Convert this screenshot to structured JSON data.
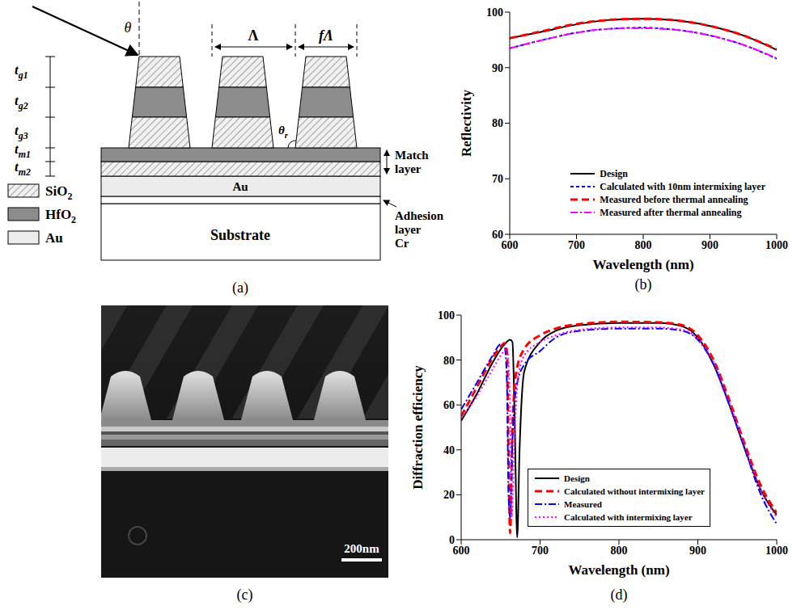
{
  "diagram": {
    "label": "(a)",
    "angle_incidence": "θ",
    "angle_sidewall": {
      "text": "θ",
      "sub": "r"
    },
    "period": "Λ",
    "width": "fΛ",
    "thickness_labels": [
      {
        "text": "t",
        "sub": "g1"
      },
      {
        "text": "t",
        "sub": "g2"
      },
      {
        "text": "t",
        "sub": "g3"
      },
      {
        "text": "t",
        "sub": "m1"
      },
      {
        "text": "t",
        "sub": "m2"
      }
    ],
    "match_layer": "Match layer",
    "metal_layer": "Au",
    "substrate": "Substrate",
    "adhesion_layer": [
      "Adhesion",
      "layer",
      "Cr"
    ],
    "materials": [
      {
        "text": "SiO",
        "sub": "2"
      },
      {
        "text": "HfO",
        "sub": "2"
      },
      {
        "text": "Au"
      }
    ]
  },
  "chart_data": [
    {
      "type": "line",
      "label": "(b)",
      "xlabel": "Wavelength (nm)",
      "ylabel": "Reflectivity",
      "xlim": [
        600,
        1000
      ],
      "xticks": [
        600,
        700,
        800,
        900,
        1000
      ],
      "ylim": [
        60,
        100
      ],
      "yticks": [
        60,
        70,
        80,
        90,
        100
      ],
      "legend": "lower right",
      "series": [
        {
          "name": "Design",
          "color": "#000000",
          "line_style": "solid",
          "x": [
            600,
            650,
            700,
            750,
            800,
            850,
            900,
            950,
            1000
          ],
          "values": [
            95.3,
            96.5,
            97.8,
            98.6,
            98.8,
            98.5,
            97.5,
            95.8,
            93.2
          ]
        },
        {
          "name": "Calculated with 10nm intermixing layer",
          "color": "#0000ff",
          "line_style": "short_dash",
          "x": [
            600,
            650,
            700,
            750,
            800,
            850,
            900,
            950,
            1000
          ],
          "values": [
            93.5,
            95,
            96.3,
            97,
            97.2,
            96.8,
            95.8,
            94.1,
            91.6
          ]
        },
        {
          "name": "Measured before thermal annealing",
          "color": "#ff0000",
          "line_style": "dashed",
          "x": [
            600,
            650,
            700,
            750,
            800,
            850,
            900,
            950,
            1000
          ],
          "values": [
            95.3,
            96.6,
            97.9,
            98.6,
            98.8,
            98.5,
            97.5,
            95.8,
            93.3
          ]
        },
        {
          "name": "Measured after thermal annealing",
          "color": "#ff00ff",
          "line_style": "dash_dot",
          "x": [
            600,
            650,
            700,
            750,
            800,
            850,
            900,
            950,
            1000
          ],
          "values": [
            93.5,
            95,
            96.3,
            97,
            97.1,
            96.8,
            95.8,
            94.1,
            91.7
          ]
        }
      ]
    },
    {
      "type": "line",
      "label": "(d)",
      "xlabel": "Wavelength (nm)",
      "ylabel": "Diffraction efficiency",
      "xlim": [
        600,
        1000
      ],
      "xticks": [
        600,
        700,
        800,
        900,
        1000
      ],
      "ylim": [
        0,
        100
      ],
      "yticks": [
        0,
        20,
        40,
        60,
        80,
        100
      ],
      "legend": "lower center",
      "series": [
        {
          "name": "Design",
          "color": "#000000",
          "line_style": "solid",
          "x": [
            600,
            620,
            640,
            655,
            662,
            665,
            668,
            671,
            674,
            680,
            700,
            720,
            750,
            800,
            850,
            880,
            900,
            920,
            940,
            960,
            980,
            1000
          ],
          "values": [
            53,
            65,
            79,
            87,
            89,
            88,
            50,
            1,
            40,
            75,
            88,
            93,
            95.5,
            96.5,
            96.5,
            95,
            90,
            78,
            60,
            40,
            22,
            11
          ]
        },
        {
          "name": "Calculated without intermixing layer",
          "color": "#ff0000",
          "line_style": "dashed",
          "x": [
            600,
            620,
            640,
            650,
            655,
            658,
            660,
            662,
            665,
            670,
            680,
            700,
            720,
            750,
            800,
            850,
            880,
            900,
            920,
            940,
            960,
            980,
            1000
          ],
          "values": [
            55,
            68,
            81,
            86,
            87.5,
            84,
            40,
            3,
            50,
            75,
            85,
            91,
            94,
            96,
            97,
            96.8,
            95.5,
            91,
            80,
            62,
            42,
            24,
            12
          ]
        },
        {
          "name": "Measured",
          "color": "#0000ff",
          "line_style": "dash_dot",
          "x": [
            600,
            620,
            640,
            650,
            655,
            658,
            660,
            662,
            665,
            670,
            680,
            700,
            720,
            750,
            800,
            850,
            880,
            900,
            920,
            940,
            960,
            980,
            1000
          ],
          "values": [
            58,
            70,
            82,
            87,
            86,
            70,
            20,
            10,
            45,
            68,
            78,
            84,
            90,
            93,
            94,
            94,
            93,
            89,
            78,
            60,
            40,
            20,
            7
          ]
        },
        {
          "name": "Calculated with intermixing layer",
          "color": "#ff00ff",
          "line_style": "dotted",
          "x": [
            600,
            620,
            640,
            650,
            658,
            662,
            664,
            667,
            672,
            680,
            700,
            720,
            750,
            800,
            850,
            880,
            900,
            920,
            940,
            960,
            980,
            1000
          ],
          "values": [
            54,
            64,
            76,
            82,
            85,
            60,
            10,
            40,
            72,
            82,
            88,
            91,
            93.5,
            94.5,
            94.5,
            93.5,
            89.5,
            79,
            61,
            41,
            22,
            10
          ]
        }
      ]
    }
  ],
  "image": {
    "label": "(c)",
    "scale_bar": "200nm"
  }
}
